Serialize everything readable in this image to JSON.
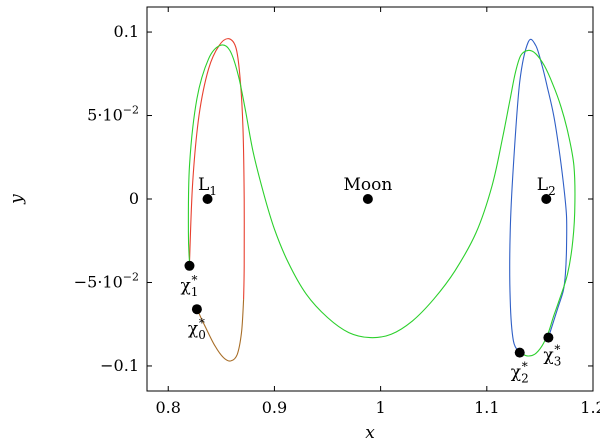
{
  "chart_data": {
    "type": "line",
    "title": "",
    "xlabel": "x",
    "ylabel": "y",
    "xlim": [
      0.78,
      1.2
    ],
    "ylim": [
      -0.115,
      0.115
    ],
    "x_ticks": [
      {
        "value": 0.8,
        "label": "0.8"
      },
      {
        "value": 0.9,
        "label": "0.9"
      },
      {
        "value": 1.0,
        "label": "1"
      },
      {
        "value": 1.1,
        "label": "1.1"
      },
      {
        "value": 1.2,
        "label": "1.2"
      }
    ],
    "y_ticks": [
      {
        "value": 0.1,
        "label": "0.1"
      },
      {
        "value": 0.05,
        "label": "5·10",
        "exponent": "−2"
      },
      {
        "value": 0.0,
        "label": "0"
      },
      {
        "value": -0.05,
        "label": "−5·10",
        "exponent": "−2"
      },
      {
        "value": -0.1,
        "label": "−0.1"
      }
    ],
    "grid": false,
    "series": [
      {
        "color": "#e8402f",
        "x": [
          0.82,
          0.823,
          0.829,
          0.838,
          0.848,
          0.857,
          0.864,
          0.868,
          0.8705,
          0.8715,
          0.8715,
          0.871
        ],
        "y": [
          -0.038,
          0.01,
          0.05,
          0.078,
          0.092,
          0.096,
          0.09,
          0.07,
          0.04,
          0.0,
          -0.04,
          -0.06
        ]
      },
      {
        "color": "#a86e28",
        "x": [
          0.871,
          0.869,
          0.865,
          0.859,
          0.852,
          0.844,
          0.836,
          0.83,
          0.827
        ],
        "y": [
          -0.06,
          -0.08,
          -0.093,
          -0.097,
          -0.095,
          -0.088,
          -0.078,
          -0.07,
          -0.065
        ]
      },
      {
        "color": "#2f5fc6",
        "x": [
          1.131,
          1.125,
          1.122,
          1.122,
          1.125,
          1.131,
          1.139,
          1.146,
          1.152,
          1.157,
          1.163,
          1.168,
          1.172,
          1.175,
          1.175,
          1.174,
          1.172,
          1.167,
          1.161,
          1.158
        ],
        "y": [
          -0.092,
          -0.085,
          -0.06,
          -0.02,
          0.02,
          0.07,
          0.094,
          0.092,
          0.08,
          0.067,
          0.05,
          0.03,
          0.01,
          -0.01,
          -0.03,
          -0.045,
          -0.055,
          -0.065,
          -0.077,
          -0.083
        ]
      },
      {
        "color": "#2cd02c",
        "x": [
          0.82,
          0.819,
          0.82,
          0.827,
          0.838,
          0.849,
          0.858,
          0.866,
          0.873,
          0.88,
          0.89,
          0.9,
          0.913,
          0.93,
          0.95,
          0.97,
          0.99,
          1.01,
          1.03,
          1.05,
          1.07,
          1.09,
          1.105,
          1.115,
          1.122,
          1.127,
          1.132,
          1.139,
          1.146,
          1.154,
          1.162,
          1.17,
          1.177,
          1.182,
          1.183,
          1.181,
          1.176,
          1.168,
          1.163,
          1.158,
          1.152,
          1.145,
          1.138,
          1.131
        ],
        "y": [
          -0.038,
          -0.02,
          0.02,
          0.06,
          0.084,
          0.092,
          0.089,
          0.074,
          0.052,
          0.028,
          0.003,
          -0.018,
          -0.038,
          -0.057,
          -0.071,
          -0.08,
          -0.083,
          -0.081,
          -0.073,
          -0.06,
          -0.043,
          -0.02,
          0.008,
          0.037,
          0.06,
          0.076,
          0.086,
          0.089,
          0.087,
          0.08,
          0.069,
          0.055,
          0.038,
          0.02,
          -0.002,
          -0.025,
          -0.045,
          -0.061,
          -0.07,
          -0.08,
          -0.088,
          -0.093,
          -0.094,
          -0.092
        ]
      }
    ],
    "points": [
      {
        "x": 0.837,
        "y": 0.0,
        "label": "L",
        "sub": "1",
        "sup": "",
        "anchor": "above"
      },
      {
        "x": 0.988,
        "y": 0.0,
        "label": "Moon",
        "sub": "",
        "sup": "",
        "anchor": "above"
      },
      {
        "x": 1.156,
        "y": 0.0,
        "label": "L",
        "sub": "2",
        "sup": "",
        "anchor": "above"
      },
      {
        "x": 0.82,
        "y": -0.04,
        "label": "χ",
        "sub": "1",
        "sup": "*",
        "anchor": "below"
      },
      {
        "x": 0.827,
        "y": -0.066,
        "label": "χ",
        "sub": "0",
        "sup": "*",
        "anchor": "below"
      },
      {
        "x": 1.131,
        "y": -0.092,
        "label": "χ",
        "sub": "2",
        "sup": "*",
        "anchor": "below"
      },
      {
        "x": 1.158,
        "y": -0.083,
        "label": "χ",
        "sub": "3",
        "sup": "*",
        "anchor": "below-right"
      }
    ]
  }
}
